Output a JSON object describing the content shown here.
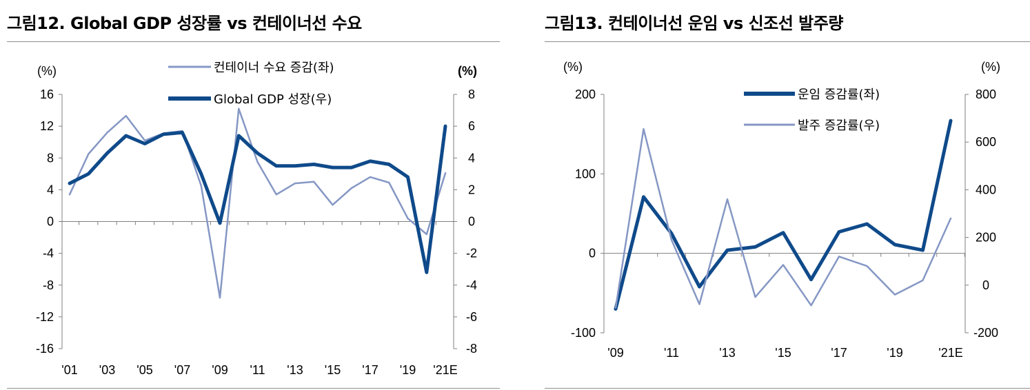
{
  "colors": {
    "thick": "#0f4a8a",
    "thin": "#8597c4",
    "axis": "#7f7f7f"
  },
  "chart_data": [
    {
      "type": "line",
      "title": "그림12. Global GDP 성장률 vs 컨테이너선 수요",
      "y_left_unit": "(%)",
      "y_right_unit": "(%)",
      "ylim_left": [
        -16,
        16
      ],
      "ylim_right": [
        -8,
        8
      ],
      "y_ticks_left": [
        "16",
        "12",
        "8",
        "4",
        "0",
        "-4",
        "-8",
        "-12",
        "-16"
      ],
      "y_ticks_right": [
        "8",
        "6",
        "4",
        "2",
        "0",
        "-2",
        "-4",
        "-6",
        "-8"
      ],
      "categories": [
        "'01",
        "'02",
        "'03",
        "'04",
        "'05",
        "'06",
        "'07",
        "'08",
        "'09",
        "'10",
        "'11",
        "'12",
        "'13",
        "'14",
        "'15",
        "'16",
        "'17",
        "'18",
        "'19",
        "'20",
        "'21E"
      ],
      "x_tick_labels": [
        "'01",
        "",
        "'03",
        "",
        "'05",
        "",
        "'07",
        "",
        "'09",
        "",
        "'11",
        "",
        "'13",
        "",
        "'15",
        "",
        "'17",
        "",
        "'19",
        "",
        "'21E"
      ],
      "series": [
        {
          "name": "컨테이너 수요 증감(좌)",
          "axis": "left",
          "style": "thin",
          "values": [
            3.4,
            8.5,
            11.2,
            13.3,
            10.2,
            11.1,
            11.4,
            4.5,
            -9.6,
            14.2,
            7.5,
            3.4,
            4.8,
            5.0,
            2.1,
            4.2,
            5.6,
            4.9,
            0.4,
            -1.6,
            6.1
          ]
        },
        {
          "name": "Global GDP 성장(우)",
          "axis": "right",
          "style": "thick",
          "values": [
            2.4,
            3.0,
            4.3,
            5.4,
            4.9,
            5.5,
            5.6,
            3.0,
            -0.1,
            5.4,
            4.3,
            3.5,
            3.5,
            3.6,
            3.4,
            3.4,
            3.8,
            3.6,
            2.8,
            -3.2,
            6.0
          ]
        }
      ],
      "legend_position": "top-center"
    },
    {
      "type": "line",
      "title": "그림13. 컨테이너선 운임 vs 신조선 발주량",
      "y_left_unit": "(%)",
      "y_right_unit": "(%)",
      "ylim_left": [
        -100,
        200
      ],
      "ylim_right": [
        -200,
        800
      ],
      "y_ticks_left": [
        "200",
        "100",
        "0",
        "-100"
      ],
      "y_ticks_right": [
        "800",
        "600",
        "400",
        "200",
        "0",
        "-200"
      ],
      "categories": [
        "'09",
        "'10",
        "'11",
        "'12",
        "'13",
        "'14",
        "'15",
        "'16",
        "'17",
        "'18",
        "'19",
        "'20",
        "'21E"
      ],
      "x_tick_labels": [
        "'09",
        "",
        "'11",
        "",
        "'13",
        "",
        "'15",
        "",
        "'17",
        "",
        "'19",
        "",
        "'21E"
      ],
      "series": [
        {
          "name": "운임 증감률(좌)",
          "axis": "left",
          "style": "thick",
          "values": [
            -70,
            71,
            25,
            -42,
            4,
            8,
            26,
            -33,
            27,
            37,
            11,
            4,
            167
          ]
        },
        {
          "name": "발주 증감률(우)",
          "axis": "right",
          "style": "thin",
          "values": [
            -95,
            655,
            190,
            -80,
            360,
            -50,
            85,
            -85,
            120,
            80,
            -40,
            20,
            280
          ]
        }
      ],
      "legend_position": "top-center"
    }
  ]
}
